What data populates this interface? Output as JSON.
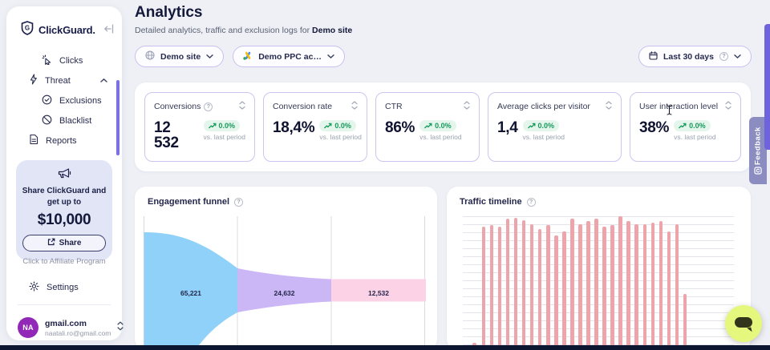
{
  "sidebar": {
    "brand": "ClickGuard.",
    "nav": [
      {
        "label": "Clicks"
      },
      {
        "label": "Threat"
      },
      {
        "label": "Exclusions"
      },
      {
        "label": "Blacklist"
      },
      {
        "label": "Reports"
      }
    ],
    "promo": {
      "headline": "Share ClickGuard and get up to",
      "amount": "$10,000",
      "share_label": "Share",
      "caption": "Click to Affiliate Program"
    },
    "settings_label": "Settings",
    "account": {
      "initials": "NA",
      "name": "gmail.com",
      "email": "naatali.ro@gmail.com"
    }
  },
  "header": {
    "title": "Analytics",
    "subtitle_prefix": "Detailed analytics, traffic and exclusion logs for",
    "subtitle_target": "Demo site",
    "site_filter": "Demo site",
    "account_filter": "Demo PPC ac…",
    "date_filter": "Last 30 days"
  },
  "stats": {
    "cards": [
      {
        "label": "Conversions",
        "value": "12 532",
        "change": "0.0%",
        "period": "vs. last period"
      },
      {
        "label": "Conversion rate",
        "value": "18,4%",
        "change": "0.0%",
        "period": "vs. last period"
      },
      {
        "label": "CTR",
        "value": "86%",
        "change": "0.0%",
        "period": "vs. last period"
      },
      {
        "label": "Average clicks per visitor",
        "value": "1,4",
        "change": "0.0%",
        "period": "vs. last period"
      },
      {
        "label": "User interaction level",
        "value": "38%",
        "change": "0.0%",
        "period": "vs. last period"
      }
    ]
  },
  "chart_data": [
    {
      "type": "funnel",
      "title": "Engagement funnel",
      "stages": [
        {
          "value": 65221,
          "label": "65,221",
          "color": "#8fd1f8"
        },
        {
          "value": 24632,
          "label": "24,632",
          "color": "#cbb6f6"
        },
        {
          "value": 12532,
          "label": "12,532",
          "color": "#fcd3e6"
        }
      ]
    },
    {
      "type": "bar",
      "title": "Traffic timeline",
      "bar_color": "#eda4ab",
      "grid": "horizontal",
      "values_relative_pct": [
        2,
        92,
        93,
        92,
        98,
        99,
        97,
        94,
        90,
        93,
        85,
        88,
        98,
        94,
        96,
        98,
        92,
        93,
        100,
        96,
        94,
        94,
        95,
        96,
        88,
        94,
        40
      ]
    }
  ],
  "feedback_tab": {
    "label": "Feedback"
  },
  "colors": {
    "accent_purple": "#7a6ff0",
    "border_purple": "#cbc5f1",
    "positive_green": "#17995c",
    "brand_navy": "#1b2150",
    "chat_button": "#e5f87d",
    "funnel_blue": "#8fd1f8",
    "funnel_purple": "#cbb6f6",
    "funnel_pink": "#fcd3e6"
  }
}
